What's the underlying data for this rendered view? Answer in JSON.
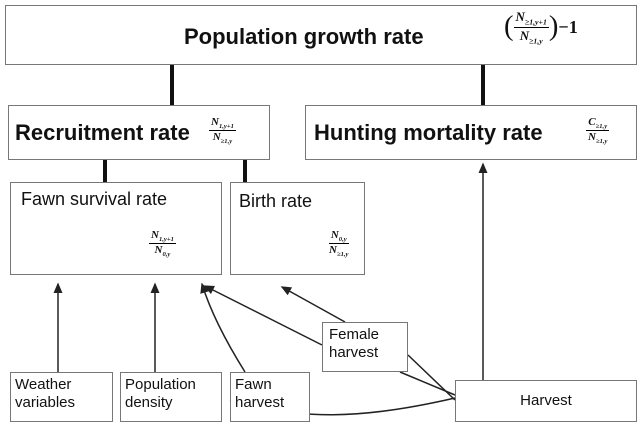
{
  "nodes": [
    {
      "label": "Population growth rate",
      "formula": {
        "open": "(",
        "numerator": {
          "base": "N",
          "sub": "≥1,y+1"
        },
        "denominator": {
          "base": "N",
          "sub": "≥1,y"
        },
        "close": ")",
        "suffix": "−1"
      }
    },
    {
      "label": "Recruitment rate",
      "formula": {
        "numerator": {
          "base": "N",
          "sub": "1,y+1"
        },
        "denominator": {
          "base": "N",
          "sub": "≥1,y"
        }
      }
    },
    {
      "label": "Hunting mortality rate",
      "formula": {
        "numerator": {
          "base": "C",
          "sub": "≥1,y"
        },
        "denominator": {
          "base": "N",
          "sub": "≥1,y"
        }
      }
    },
    {
      "label": "Fawn survival rate",
      "formula": {
        "numerator": {
          "base": "N",
          "sub": "1,y+1"
        },
        "denominator": {
          "base": "N",
          "sub": "0,y"
        }
      }
    },
    {
      "label": "Birth rate",
      "formula": {
        "numerator": {
          "base": "N",
          "sub": "0,y"
        },
        "denominator": {
          "base": "N",
          "sub": "≥1,y"
        }
      }
    },
    {
      "label": "Weather variables"
    },
    {
      "label": "Population density"
    },
    {
      "label": "Fawn harvest"
    },
    {
      "label": "Female harvest"
    },
    {
      "label": "Harvest"
    }
  ]
}
